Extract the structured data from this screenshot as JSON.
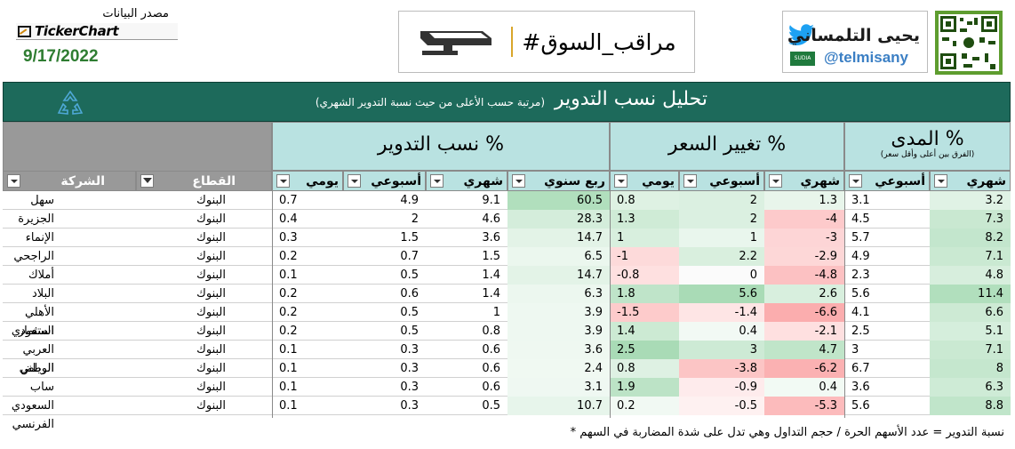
{
  "header": {
    "source_label": "مصدر البيانات",
    "source_name": "TickerChart",
    "date": "9/17/2022",
    "market_tag": "#مراقب_السوق",
    "author_name": "يحيى التلمساني",
    "author_handle": "@telmisany",
    "flag_text": "SUDIA"
  },
  "title": {
    "main": "تحليل نسب التدوير",
    "sub": "(مرتبة حسب الأعلى من حيث نسبة التدوير الشهري)"
  },
  "groups": {
    "turnover": "نسب التدوير %",
    "price_change": "تغيير السعر %",
    "range": "المدى %",
    "range_note": "(الفرق بين أعلى وأقل سعر)"
  },
  "columns": {
    "company": "الشركة",
    "sector": "القطاع",
    "t_daily": "يومي",
    "t_weekly": "أسبوعي",
    "t_monthly": "شهري",
    "t_quarterly": "ربع سنوي",
    "p_daily": "يومي",
    "p_weekly": "أسبوعي",
    "p_monthly": "شهري",
    "r_weekly": "أسبوعي",
    "r_monthly": "شهري"
  },
  "rows": [
    {
      "company": "سهل",
      "sector": "البنوك",
      "t_daily": "0.7",
      "t_weekly": "4.9",
      "t_monthly": "9.1",
      "t_quarterly": "60.5",
      "p_daily": "0.8",
      "p_weekly": "2",
      "p_monthly": "1.3",
      "r_weekly": "3.1",
      "r_monthly": "3.2"
    },
    {
      "company": "الجزيرة",
      "sector": "البنوك",
      "t_daily": "0.4",
      "t_weekly": "2",
      "t_monthly": "4.6",
      "t_quarterly": "28.3",
      "p_daily": "1.3",
      "p_weekly": "2",
      "p_monthly": "-4",
      "r_weekly": "4.5",
      "r_monthly": "7.3"
    },
    {
      "company": "الإنماء",
      "sector": "البنوك",
      "t_daily": "0.3",
      "t_weekly": "1.5",
      "t_monthly": "3.6",
      "t_quarterly": "14.7",
      "p_daily": "1",
      "p_weekly": "1",
      "p_monthly": "-3",
      "r_weekly": "5.7",
      "r_monthly": "8.2"
    },
    {
      "company": "الراجحي",
      "sector": "البنوك",
      "t_daily": "0.2",
      "t_weekly": "0.7",
      "t_monthly": "1.5",
      "t_quarterly": "6.5",
      "p_daily": "-1",
      "p_weekly": "2.2",
      "p_monthly": "-2.9",
      "r_weekly": "4.9",
      "r_monthly": "7.1"
    },
    {
      "company": "أملاك",
      "sector": "البنوك",
      "t_daily": "0.1",
      "t_weekly": "0.5",
      "t_monthly": "1.4",
      "t_quarterly": "14.7",
      "p_daily": "-0.8",
      "p_weekly": "0",
      "p_monthly": "-4.8",
      "r_weekly": "2.3",
      "r_monthly": "4.8"
    },
    {
      "company": "البلاد",
      "sector": "البنوك",
      "t_daily": "0.2",
      "t_weekly": "0.6",
      "t_monthly": "1.4",
      "t_quarterly": "6.3",
      "p_daily": "1.8",
      "p_weekly": "5.6",
      "p_monthly": "2.6",
      "r_weekly": "5.6",
      "r_monthly": "11.4"
    },
    {
      "company": "الأهلي السعودي",
      "sector": "البنوك",
      "t_daily": "0.2",
      "t_weekly": "0.5",
      "t_monthly": "1",
      "t_quarterly": "3.9",
      "p_daily": "-1.5",
      "p_weekly": "-1.4",
      "p_monthly": "-6.6",
      "r_weekly": "4.1",
      "r_monthly": "6.6"
    },
    {
      "company": "استثمار",
      "sector": "البنوك",
      "t_daily": "0.2",
      "t_weekly": "0.5",
      "t_monthly": "0.8",
      "t_quarterly": "3.9",
      "p_daily": "1.4",
      "p_weekly": "0.4",
      "p_monthly": "-2.1",
      "r_weekly": "2.5",
      "r_monthly": "5.1"
    },
    {
      "company": "العربي الوطني",
      "sector": "البنوك",
      "t_daily": "0.1",
      "t_weekly": "0.3",
      "t_monthly": "0.6",
      "t_quarterly": "3.6",
      "p_daily": "2.5",
      "p_weekly": "3",
      "p_monthly": "4.7",
      "r_weekly": "3",
      "r_monthly": "7.1"
    },
    {
      "company": "الرياض",
      "sector": "البنوك",
      "t_daily": "0.1",
      "t_weekly": "0.3",
      "t_monthly": "0.6",
      "t_quarterly": "2.4",
      "p_daily": "0.8",
      "p_weekly": "-3.8",
      "p_monthly": "-6.2",
      "r_weekly": "6.7",
      "r_monthly": "8"
    },
    {
      "company": "ساب",
      "sector": "البنوك",
      "t_daily": "0.1",
      "t_weekly": "0.3",
      "t_monthly": "0.6",
      "t_quarterly": "3.1",
      "p_daily": "1.9",
      "p_weekly": "-0.9",
      "p_monthly": "0.4",
      "r_weekly": "3.6",
      "r_monthly": "6.3"
    },
    {
      "company": "السعودي الفرنسي",
      "sector": "البنوك",
      "t_daily": "0.1",
      "t_weekly": "0.3",
      "t_monthly": "0.5",
      "t_quarterly": "10.7",
      "p_daily": "0.2",
      "p_weekly": "-0.5",
      "p_monthly": "-5.3",
      "r_weekly": "5.6",
      "r_monthly": "8.8"
    }
  ],
  "footnote": "* نسبة التدوير = عدد الأسهم الحرة / حجم التداول وهي تدل على شدة المضاربة في السهم",
  "colors": {
    "band": "#1d6a5b",
    "header_fill": "#b9e2e1",
    "gray_header": "#999999",
    "green_scale": "#63be7b",
    "red_scale": "#f8696b",
    "date_green": "#2f7d32",
    "handle_blue": "#3b7fc4"
  }
}
